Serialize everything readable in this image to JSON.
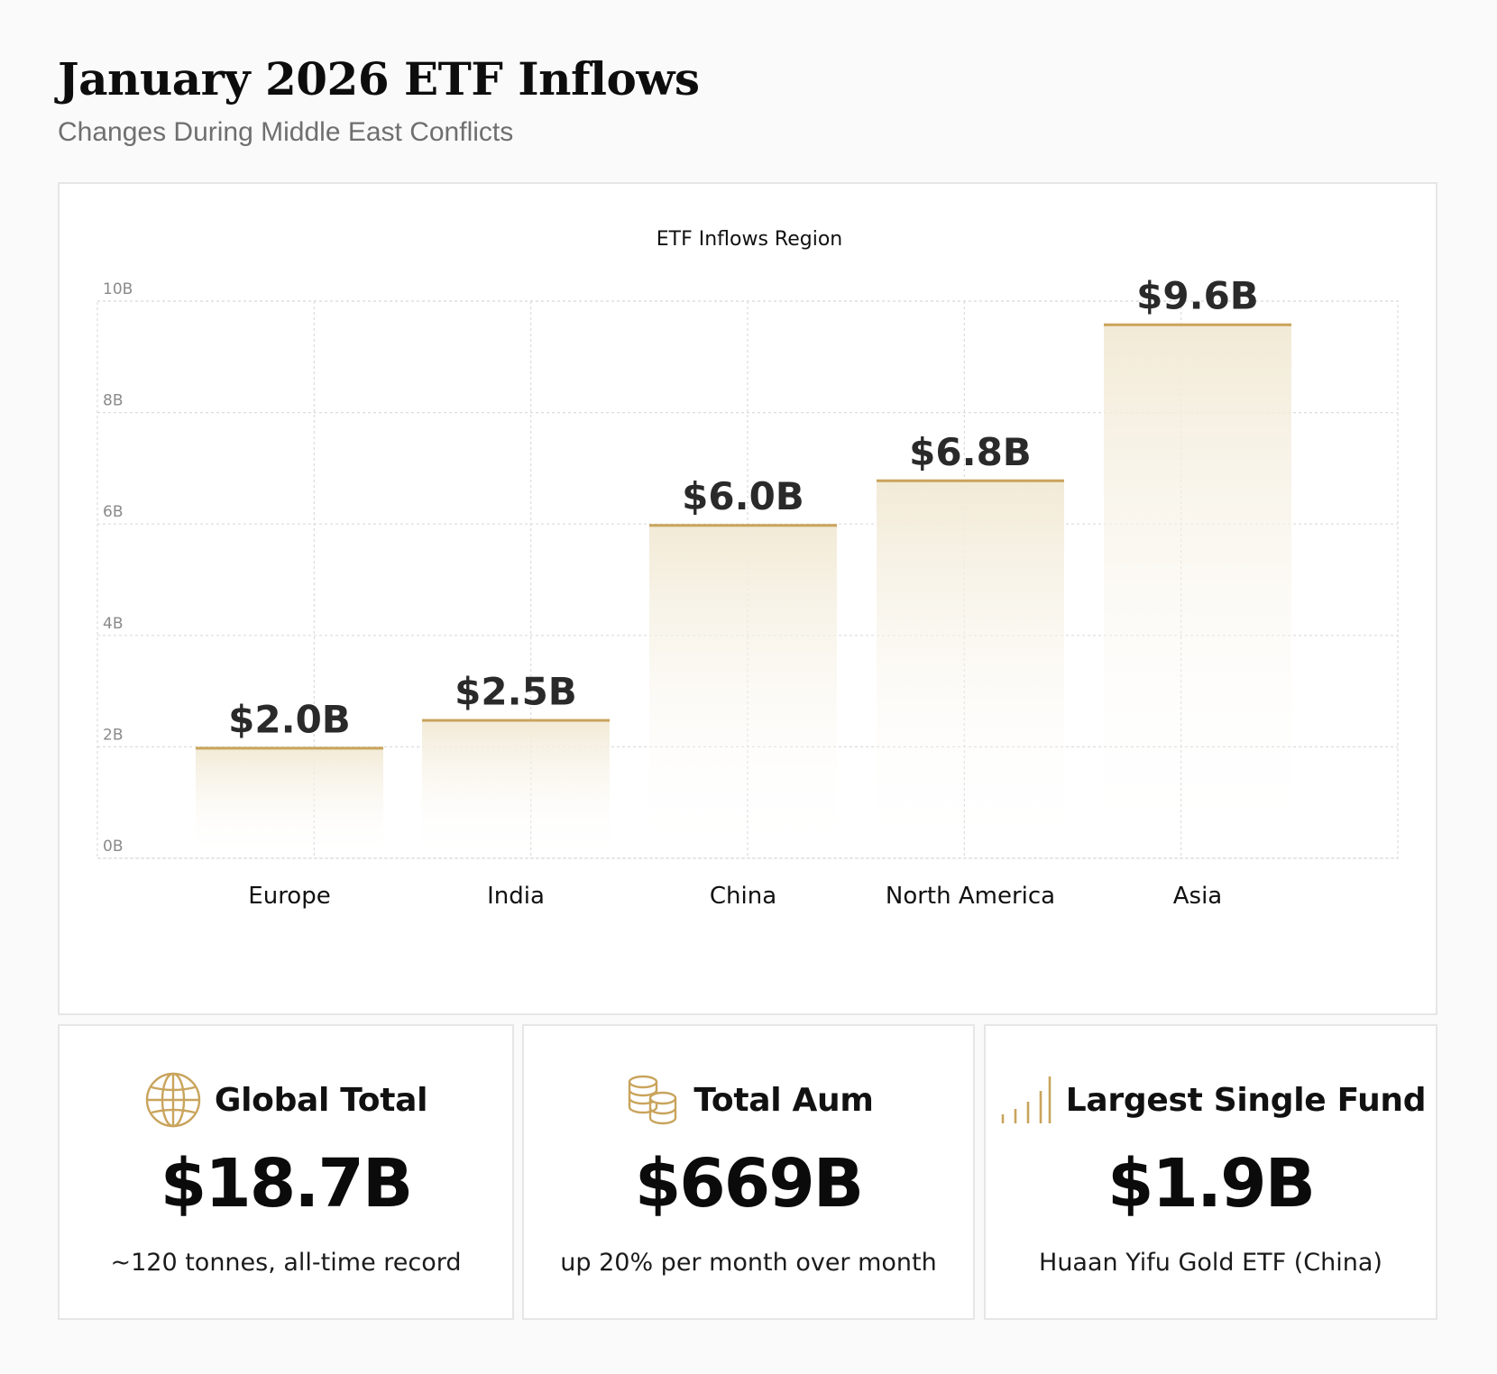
{
  "page": {
    "title": "January 2026 ETF Inflows",
    "subtitle": "Changes During Middle East Conflicts"
  },
  "colors": {
    "accent": "#c9a45c",
    "bar_fill_top": "#f2ead6",
    "grid": "#dcdcdc",
    "tick_text": "#8a8a8a"
  },
  "chart_data": {
    "type": "bar",
    "title": "ETF Inflows Region",
    "xlabel": "",
    "ylabel": "",
    "categories": [
      "Europe",
      "India",
      "China",
      "North America",
      "Asia"
    ],
    "values": [
      2.0,
      2.5,
      6.0,
      6.8,
      9.6
    ],
    "value_labels": [
      "$2.0B",
      "$2.5B",
      "$6.0B",
      "$6.8B",
      "$9.6B"
    ],
    "ylim": [
      0,
      10
    ],
    "yticks": [
      0,
      2,
      4,
      6,
      8,
      10
    ],
    "ytick_labels": [
      "0B",
      "2B",
      "4B",
      "6B",
      "8B",
      "10B"
    ],
    "grid": true,
    "legend": "none"
  },
  "stats": [
    {
      "label": "Global Total",
      "value": "$18.7B",
      "note": "~120 tonnes, all-time record",
      "icon": "globe-icon"
    },
    {
      "label": "Total Aum",
      "value": "$669B",
      "note": "up 20% per month over month",
      "icon": "coins-icon"
    },
    {
      "label": "Largest Single Fund",
      "value": "$1.9B",
      "note": "Huaan Yifu Gold ETF (China)",
      "icon": "bar-signal-icon"
    }
  ]
}
